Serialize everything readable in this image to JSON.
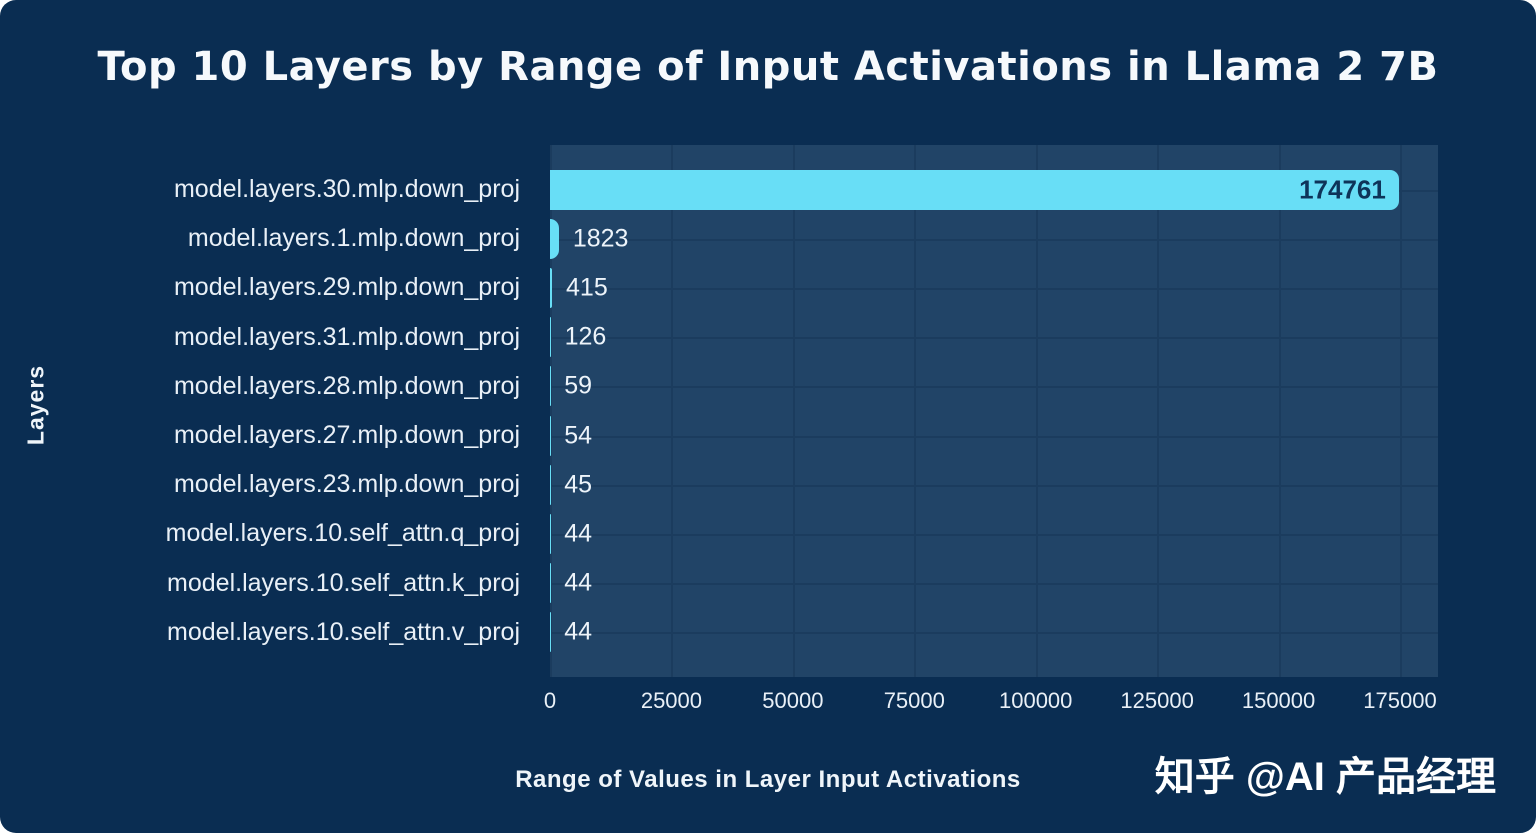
{
  "page": {
    "watermark": "知乎 @AI 产品经理"
  },
  "chart_data": {
    "type": "bar",
    "orientation": "horizontal",
    "title": "Top 10 Layers by Range of Input Activations in Llama 2 7B",
    "xlabel": "Range of Values in Layer Input Activations",
    "ylabel": "Layers",
    "categories": [
      "model.layers.30.mlp.down_proj",
      "model.layers.1.mlp.down_proj",
      "model.layers.29.mlp.down_proj",
      "model.layers.31.mlp.down_proj",
      "model.layers.28.mlp.down_proj",
      "model.layers.27.mlp.down_proj",
      "model.layers.23.mlp.down_proj",
      "model.layers.10.self_attn.q_proj",
      "model.layers.10.self_attn.k_proj",
      "model.layers.10.self_attn.v_proj"
    ],
    "values": [
      174761,
      1823,
      415,
      126,
      59,
      54,
      45,
      44,
      44,
      44
    ],
    "x_ticks": [
      0,
      25000,
      50000,
      75000,
      100000,
      125000,
      150000,
      175000
    ],
    "xlim": [
      0,
      182800
    ],
    "grid": true,
    "legend": false,
    "colors": {
      "background": "#0A2D52",
      "plot_background": "#214467",
      "gridline": "#1B3C5E",
      "bar": "#68DEF6",
      "text": "#EDF4FA",
      "bar_label_inside": "#0E3459"
    }
  }
}
